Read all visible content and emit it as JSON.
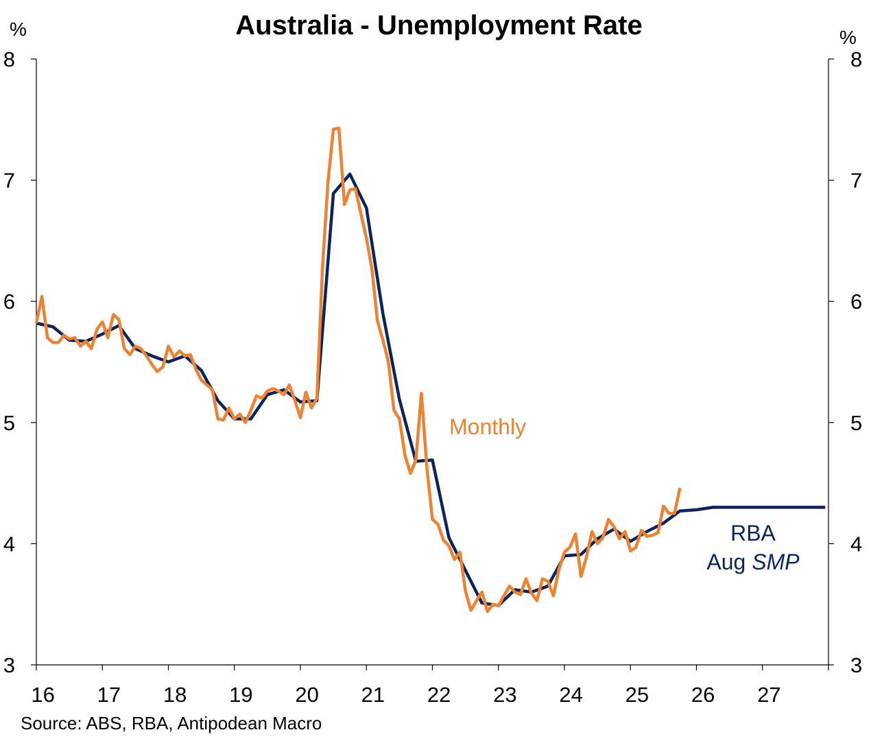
{
  "chart_data": {
    "type": "line",
    "title": "Australia - Unemployment Rate",
    "left_unit": "%",
    "right_unit": "%",
    "source": "Source: ABS, RBA, Antipodean Macro",
    "ylim": [
      3,
      8
    ],
    "yticks": [
      "3",
      "4",
      "5",
      "6",
      "7",
      "8"
    ],
    "xlim": [
      2016,
      2028
    ],
    "xticks": [
      "16",
      "17",
      "18",
      "19",
      "20",
      "21",
      "22",
      "23",
      "24",
      "25",
      "26",
      "27"
    ],
    "colors": {
      "monthly": "#ED8233",
      "rba": "#0B2460",
      "axis": "#000000"
    },
    "annotations": {
      "monthly": "Monthly",
      "rba_line1": "RBA",
      "rba_line2_prefix": "Aug ",
      "rba_line2_italic": "SMP"
    },
    "series": [
      {
        "name": "RBA Aug SMP",
        "color": "#0B2460",
        "x": [
          2016.0,
          2016.25,
          2016.5,
          2016.75,
          2017.0,
          2017.25,
          2017.5,
          2017.75,
          2018.0,
          2018.25,
          2018.5,
          2018.75,
          2019.0,
          2019.25,
          2019.5,
          2019.75,
          2020.0,
          2020.25,
          2020.5,
          2020.75,
          2021.0,
          2021.25,
          2021.5,
          2021.75,
          2022.0,
          2022.25,
          2022.5,
          2022.75,
          2023.0,
          2023.25,
          2023.5,
          2023.75,
          2024.0,
          2024.25,
          2024.5,
          2024.75,
          2025.0,
          2025.25,
          2025.5,
          2025.75,
          2026.0,
          2026.25,
          2026.5,
          2026.75,
          2027.0,
          2027.25,
          2027.5,
          2027.75,
          2027.95
        ],
        "values": [
          5.82,
          5.79,
          5.68,
          5.67,
          5.73,
          5.8,
          5.61,
          5.55,
          5.5,
          5.55,
          5.43,
          5.18,
          5.03,
          5.03,
          5.23,
          5.27,
          5.17,
          5.18,
          6.89,
          7.05,
          6.77,
          5.9,
          5.19,
          4.68,
          4.69,
          4.05,
          3.78,
          3.51,
          3.49,
          3.62,
          3.6,
          3.65,
          3.9,
          3.91,
          4.04,
          4.12,
          4.02,
          4.1,
          4.17,
          4.27,
          4.28,
          4.3,
          4.3,
          4.3,
          4.3,
          4.3,
          4.3,
          4.3,
          4.3
        ]
      },
      {
        "name": "Monthly",
        "color": "#ED8233",
        "x": [
          2016.0,
          2016.083,
          2016.167,
          2016.25,
          2016.333,
          2016.417,
          2016.5,
          2016.583,
          2016.667,
          2016.75,
          2016.833,
          2016.917,
          2017.0,
          2017.083,
          2017.167,
          2017.25,
          2017.333,
          2017.417,
          2017.5,
          2017.583,
          2017.667,
          2017.75,
          2017.833,
          2017.917,
          2018.0,
          2018.083,
          2018.167,
          2018.25,
          2018.333,
          2018.417,
          2018.5,
          2018.583,
          2018.667,
          2018.75,
          2018.833,
          2018.917,
          2019.0,
          2019.083,
          2019.167,
          2019.25,
          2019.333,
          2019.417,
          2019.5,
          2019.583,
          2019.667,
          2019.75,
          2019.833,
          2019.917,
          2020.0,
          2020.083,
          2020.167,
          2020.25,
          2020.333,
          2020.417,
          2020.5,
          2020.583,
          2020.667,
          2020.75,
          2020.833,
          2020.917,
          2021.0,
          2021.083,
          2021.167,
          2021.25,
          2021.333,
          2021.417,
          2021.5,
          2021.583,
          2021.667,
          2021.75,
          2021.833,
          2021.917,
          2022.0,
          2022.083,
          2022.167,
          2022.25,
          2022.333,
          2022.417,
          2022.5,
          2022.583,
          2022.667,
          2022.75,
          2022.833,
          2022.917,
          2023.0,
          2023.083,
          2023.167,
          2023.25,
          2023.333,
          2023.417,
          2023.5,
          2023.583,
          2023.667,
          2023.75,
          2023.833,
          2023.917,
          2024.0,
          2024.083,
          2024.167,
          2024.25,
          2024.333,
          2024.417,
          2024.5,
          2024.583,
          2024.667,
          2024.75,
          2024.833,
          2024.917,
          2025.0,
          2025.083,
          2025.167,
          2025.25,
          2025.333,
          2025.417,
          2025.5,
          2025.583,
          2025.667,
          2025.75
        ],
        "values": [
          5.82,
          6.04,
          5.7,
          5.66,
          5.66,
          5.72,
          5.69,
          5.7,
          5.63,
          5.67,
          5.61,
          5.77,
          5.83,
          5.7,
          5.89,
          5.85,
          5.61,
          5.56,
          5.63,
          5.61,
          5.55,
          5.48,
          5.42,
          5.46,
          5.63,
          5.54,
          5.59,
          5.55,
          5.56,
          5.44,
          5.35,
          5.31,
          5.27,
          5.03,
          5.02,
          5.12,
          5.03,
          5.07,
          5.0,
          5.1,
          5.22,
          5.2,
          5.26,
          5.28,
          5.26,
          5.23,
          5.31,
          5.18,
          5.04,
          5.25,
          5.12,
          5.2,
          6.27,
          6.98,
          7.42,
          7.43,
          6.8,
          6.92,
          6.93,
          6.72,
          6.52,
          6.27,
          5.84,
          5.68,
          5.5,
          5.1,
          5.03,
          4.73,
          4.58,
          4.69,
          5.24,
          4.62,
          4.2,
          4.16,
          4.03,
          3.98,
          3.87,
          3.93,
          3.61,
          3.45,
          3.53,
          3.6,
          3.44,
          3.5,
          3.49,
          3.57,
          3.65,
          3.6,
          3.58,
          3.71,
          3.59,
          3.53,
          3.71,
          3.69,
          3.57,
          3.79,
          3.93,
          3.97,
          4.08,
          3.73,
          3.89,
          4.1,
          4.0,
          4.05,
          4.2,
          4.14,
          4.04,
          4.1,
          3.94,
          3.97,
          4.11,
          4.06,
          4.07,
          4.09,
          4.31,
          4.25,
          4.25,
          4.46
        ]
      }
    ]
  }
}
